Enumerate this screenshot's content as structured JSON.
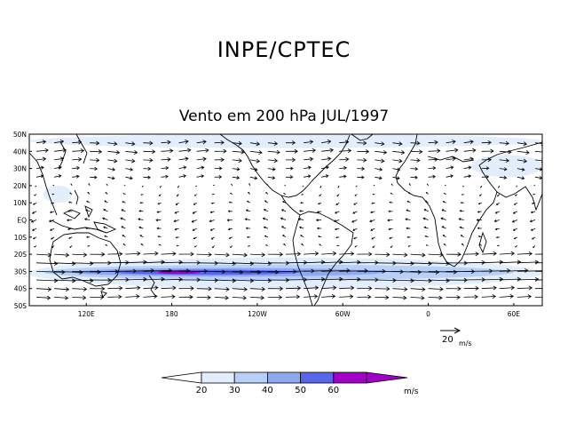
{
  "header": {
    "title": "INPE/CPTEC"
  },
  "map": {
    "title": "Vento em 200 hPa JUL/1997",
    "lat_labels": [
      "50N",
      "40N",
      "30N",
      "20N",
      "10N",
      "EQ",
      "10S",
      "20S",
      "30S",
      "40S",
      "50S"
    ],
    "lon_labels": [
      "120E",
      "180",
      "120W",
      "60W",
      "0",
      "60E"
    ],
    "lon_values": [
      120,
      180,
      240,
      300,
      360,
      420
    ],
    "lon_range": [
      80,
      440
    ],
    "lat_range": [
      -50,
      50
    ],
    "speed_bands": [
      {
        "lat_range": [
          -40,
          -22
        ],
        "lon_range": [
          80,
          440
        ],
        "min_speed": 20
      },
      {
        "lat_range": [
          -35,
          -26
        ],
        "lon_range": [
          90,
          420
        ],
        "min_speed": 30
      },
      {
        "lat_range": [
          -33,
          -28
        ],
        "lon_range": [
          110,
          330
        ],
        "min_speed": 40
      },
      {
        "lat_range": [
          -32,
          -29
        ],
        "lon_range": [
          140,
          270
        ],
        "min_speed": 50
      },
      {
        "lat_range": [
          -31.5,
          -29.5
        ],
        "lon_range": [
          170,
          200
        ],
        "min_speed": 60
      },
      {
        "lat_range": [
          42,
          50
        ],
        "lon_range": [
          80,
          440
        ],
        "min_speed": 20
      },
      {
        "lat_range": [
          25,
          38
        ],
        "lon_range": [
          390,
          440
        ],
        "min_speed": 20
      },
      {
        "lat_range": [
          10,
          20
        ],
        "lon_range": [
          90,
          110
        ],
        "min_speed": 20
      }
    ]
  },
  "vector_key": {
    "value": "20",
    "unit": "m/s"
  },
  "colorbar": {
    "ticks": [
      "20",
      "30",
      "40",
      "50",
      "60"
    ],
    "unit": "m/s",
    "colors": [
      "#ffffff",
      "#e2eefc",
      "#b8d0f8",
      "#8fa8f2",
      "#5a66ea",
      "#a000c8"
    ]
  }
}
